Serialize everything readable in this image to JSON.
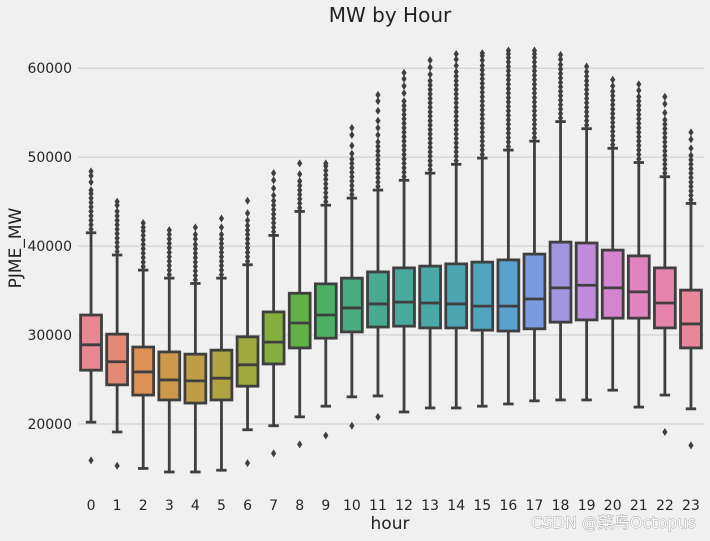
{
  "chart_data": {
    "type": "box",
    "title": "MW by Hour",
    "xlabel": "hour",
    "ylabel": "PJME_MW",
    "categories": [
      "0",
      "1",
      "2",
      "3",
      "4",
      "5",
      "6",
      "7",
      "8",
      "9",
      "10",
      "11",
      "12",
      "13",
      "14",
      "15",
      "16",
      "17",
      "18",
      "19",
      "20",
      "21",
      "22",
      "23"
    ],
    "yticks": [
      20000,
      30000,
      40000,
      50000,
      60000
    ],
    "ylim": [
      13700,
      64300
    ],
    "grid": "horizontal",
    "legend": "none",
    "edge_color": "#3f3f3f",
    "boxes": [
      {
        "category": "0",
        "low": 20200,
        "q1": 26050,
        "median": 28900,
        "q3": 32250,
        "high": 41500,
        "color": "#e88791",
        "outliers": [
          15900,
          41900,
          42400,
          42900,
          43400,
          43900,
          44400,
          44900,
          45400,
          45900,
          46300,
          47200,
          47900,
          48400
        ]
      },
      {
        "category": "1",
        "low": 19100,
        "q1": 24400,
        "median": 27000,
        "q3": 30100,
        "high": 39000,
        "color": "#e38a74",
        "outliers": [
          15300,
          39400,
          39900,
          40400,
          40900,
          41400,
          41900,
          42400,
          42900,
          43400,
          43900,
          44600,
          45000
        ]
      },
      {
        "category": "2",
        "low": 15000,
        "q1": 23250,
        "median": 25850,
        "q3": 28650,
        "high": 37300,
        "color": "#de9155",
        "outliers": [
          37700,
          38200,
          38700,
          39200,
          39700,
          40200,
          40700,
          41200,
          41700,
          42100,
          42600
        ]
      },
      {
        "category": "3",
        "low": 14600,
        "q1": 22700,
        "median": 24950,
        "q3": 28100,
        "high": 36400,
        "color": "#cd984a",
        "outliers": [
          36800,
          37300,
          37800,
          38300,
          38800,
          39300,
          39800,
          40300,
          40800,
          41300,
          41800
        ]
      },
      {
        "category": "4",
        "low": 14600,
        "q1": 22350,
        "median": 24850,
        "q3": 27850,
        "high": 35800,
        "color": "#c09e46",
        "outliers": [
          36200,
          36700,
          37200,
          37700,
          38200,
          38700,
          39200,
          39700,
          40200,
          40800,
          41300,
          42100
        ]
      },
      {
        "category": "5",
        "low": 14800,
        "q1": 22700,
        "median": 25150,
        "q3": 28300,
        "high": 36400,
        "color": "#b0a442",
        "outliers": [
          36800,
          37300,
          37800,
          38300,
          38800,
          39300,
          39800,
          40300,
          40800,
          41300,
          42100,
          43100
        ]
      },
      {
        "category": "6",
        "low": 19350,
        "q1": 24250,
        "median": 26650,
        "q3": 29800,
        "high": 37900,
        "color": "#9ea93e",
        "outliers": [
          15600,
          38300,
          38800,
          39300,
          39800,
          40300,
          40800,
          41300,
          41800,
          42300,
          42900,
          43700,
          45100
        ]
      },
      {
        "category": "7",
        "low": 19800,
        "q1": 26750,
        "median": 29200,
        "q3": 32600,
        "high": 41200,
        "color": "#85ae3e",
        "outliers": [
          16700,
          41600,
          42100,
          42600,
          43100,
          43600,
          44100,
          44600,
          45100,
          45700,
          46500,
          47400,
          48200
        ]
      },
      {
        "category": "8",
        "low": 20800,
        "q1": 28550,
        "median": 31350,
        "q3": 34700,
        "high": 43900,
        "color": "#60b248",
        "outliers": [
          17700,
          44300,
          44800,
          45300,
          45800,
          46300,
          46800,
          47300,
          48100,
          49300
        ]
      },
      {
        "category": "9",
        "low": 22000,
        "q1": 29650,
        "median": 32250,
        "q3": 35750,
        "high": 44600,
        "color": "#4bb264",
        "outliers": [
          18700,
          45000,
          45500,
          46000,
          46500,
          47000,
          47500,
          48000,
          48500,
          49000,
          49300
        ]
      },
      {
        "category": "10",
        "low": 23050,
        "q1": 30350,
        "median": 33050,
        "q3": 36400,
        "high": 45400,
        "color": "#49ac80",
        "outliers": [
          19800,
          45800,
          46300,
          46800,
          47300,
          47800,
          48300,
          48800,
          49300,
          49800,
          50400,
          51300,
          52500,
          53300
        ]
      },
      {
        "category": "11",
        "low": 23150,
        "q1": 30900,
        "median": 33500,
        "q3": 37100,
        "high": 46300,
        "color": "#48aa90",
        "outliers": [
          20800,
          46700,
          47200,
          47700,
          48200,
          48700,
          49200,
          49700,
          50200,
          50700,
          51200,
          51700,
          52500,
          53300,
          54100,
          55200,
          56300,
          57000
        ]
      },
      {
        "category": "12",
        "low": 21350,
        "q1": 31000,
        "median": 33700,
        "q3": 37550,
        "high": 47400,
        "color": "#49a99c",
        "outliers": [
          47800,
          48300,
          48800,
          49300,
          49800,
          50300,
          50800,
          51300,
          51800,
          52300,
          52800,
          53300,
          53800,
          54300,
          54800,
          55300,
          55800,
          56300,
          57200,
          58000,
          58800,
          59500
        ]
      },
      {
        "category": "13",
        "low": 21800,
        "q1": 30800,
        "median": 33600,
        "q3": 37750,
        "high": 48200,
        "color": "#4aa8a6",
        "outliers": [
          48600,
          49100,
          49600,
          50100,
          50600,
          51100,
          51600,
          52100,
          52600,
          53100,
          53600,
          54100,
          54600,
          55100,
          55600,
          56100,
          56600,
          57100,
          57600,
          58100,
          58600,
          59300,
          60100,
          60900
        ]
      },
      {
        "category": "14",
        "low": 21800,
        "q1": 30800,
        "median": 33500,
        "q3": 38000,
        "high": 49200,
        "color": "#4ca6b1",
        "outliers": [
          49600,
          50100,
          50600,
          51100,
          51600,
          52100,
          52600,
          53100,
          53600,
          54100,
          54600,
          55100,
          55600,
          56100,
          56600,
          57100,
          57600,
          58100,
          58600,
          59100,
          59600,
          60300,
          61000,
          61600
        ]
      },
      {
        "category": "15",
        "low": 22000,
        "q1": 30550,
        "median": 33250,
        "q3": 38200,
        "high": 49900,
        "color": "#50a4be",
        "outliers": [
          50300,
          50800,
          51300,
          51800,
          52300,
          52800,
          53300,
          53800,
          54300,
          54800,
          55300,
          55800,
          56300,
          56800,
          57300,
          57800,
          58300,
          58800,
          59300,
          59800,
          60300,
          60900,
          61400,
          61700
        ]
      },
      {
        "category": "16",
        "low": 22250,
        "q1": 30450,
        "median": 33250,
        "q3": 38450,
        "high": 50800,
        "color": "#5aa1cd",
        "outliers": [
          51200,
          51700,
          52200,
          52700,
          53200,
          53700,
          54200,
          54700,
          55200,
          55700,
          56200,
          56700,
          57200,
          57700,
          58200,
          58700,
          59200,
          59700,
          60200,
          60700,
          61200,
          61600,
          62000
        ]
      },
      {
        "category": "17",
        "low": 22600,
        "q1": 30700,
        "median": 34050,
        "q3": 39100,
        "high": 51800,
        "color": "#7b9be0",
        "outliers": [
          52200,
          52700,
          53200,
          53700,
          54200,
          54700,
          55200,
          55700,
          56200,
          56700,
          57200,
          57700,
          58200,
          58700,
          59200,
          59700,
          60200,
          60700,
          61200,
          61600,
          62000
        ]
      },
      {
        "category": "18",
        "low": 22700,
        "q1": 31450,
        "median": 35300,
        "q3": 40450,
        "high": 54000,
        "color": "#a394e2",
        "outliers": [
          54400,
          54900,
          55400,
          55900,
          56400,
          56900,
          57400,
          57900,
          58400,
          58900,
          59400,
          59900,
          60400,
          61000,
          61500
        ]
      },
      {
        "category": "19",
        "low": 22700,
        "q1": 31700,
        "median": 35600,
        "q3": 40350,
        "high": 53200,
        "color": "#c18bdc",
        "outliers": [
          53600,
          54100,
          54600,
          55100,
          55600,
          56100,
          56600,
          57100,
          57600,
          58100,
          58600,
          59100,
          59600,
          60200
        ]
      },
      {
        "category": "20",
        "low": 23800,
        "q1": 31900,
        "median": 35300,
        "q3": 39550,
        "high": 51000,
        "color": "#d585d0",
        "outliers": [
          51400,
          51900,
          52400,
          52900,
          53400,
          53900,
          54400,
          54900,
          55400,
          55900,
          56400,
          56900,
          57400,
          58000,
          58700
        ]
      },
      {
        "category": "21",
        "low": 21900,
        "q1": 31900,
        "median": 34850,
        "q3": 38900,
        "high": 49400,
        "color": "#e083be",
        "outliers": [
          49800,
          50300,
          50800,
          51300,
          51800,
          52300,
          52800,
          53300,
          53800,
          54300,
          54800,
          55300,
          55800,
          56300,
          56800,
          57500,
          58200
        ]
      },
      {
        "category": "22",
        "low": 23250,
        "q1": 30800,
        "median": 33600,
        "q3": 37550,
        "high": 47800,
        "color": "#e684ac",
        "outliers": [
          19100,
          48200,
          48700,
          49200,
          49700,
          50200,
          50700,
          51200,
          51700,
          52200,
          52700,
          53200,
          53700,
          54200,
          55000,
          56000,
          56800
        ]
      },
      {
        "category": "23",
        "low": 21700,
        "q1": 28550,
        "median": 31250,
        "q3": 35050,
        "high": 44800,
        "color": "#e8869c",
        "outliers": [
          17600,
          45200,
          45700,
          46200,
          46700,
          47200,
          47700,
          48200,
          48700,
          49200,
          49700,
          50200,
          51000,
          52000,
          52800
        ]
      }
    ]
  },
  "watermark": "CSDN @菜鸟Octopus"
}
